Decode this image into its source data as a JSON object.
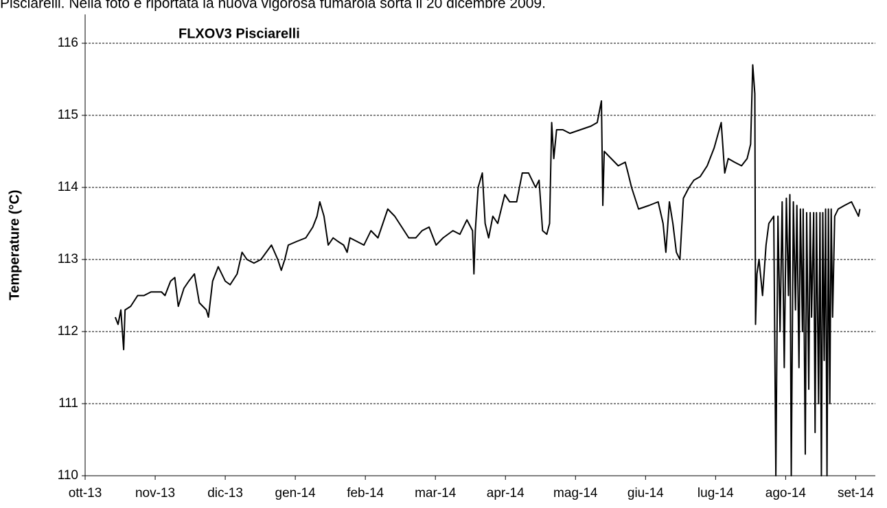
{
  "caption": "Pisciarelli. Nella foto è riportata la nuova vigorosa fumarola sorta il 20 dicembre 2009.",
  "chart_data": {
    "type": "line",
    "title": "FLXOV3 Pisciarelli",
    "y_label": "Temperature (°C)",
    "color": "#000000",
    "grid": true,
    "xlim": [
      0,
      11.28
    ],
    "ylim": [
      110,
      116.4
    ],
    "xticks": [
      {
        "value": 0,
        "label": "ott-13"
      },
      {
        "value": 1,
        "label": "nov-13"
      },
      {
        "value": 2,
        "label": "dic-13"
      },
      {
        "value": 3,
        "label": "gen-14"
      },
      {
        "value": 4,
        "label": "feb-14"
      },
      {
        "value": 5,
        "label": "mar-14"
      },
      {
        "value": 6,
        "label": "apr-14"
      },
      {
        "value": 7,
        "label": "mag-14"
      },
      {
        "value": 8,
        "label": "giu-14"
      },
      {
        "value": 9,
        "label": "lug-14"
      },
      {
        "value": 10,
        "label": "ago-14"
      },
      {
        "value": 11,
        "label": "set-14"
      }
    ],
    "yticks": [
      110,
      111,
      112,
      113,
      114,
      115,
      116
    ],
    "x": [
      0.43,
      0.47,
      0.51,
      0.55,
      0.57,
      0.65,
      0.75,
      0.84,
      0.94,
      1.09,
      1.14,
      1.22,
      1.28,
      1.33,
      1.41,
      1.48,
      1.56,
      1.63,
      1.73,
      1.76,
      1.82,
      1.9,
      2.0,
      2.07,
      2.17,
      2.24,
      2.31,
      2.41,
      2.51,
      2.66,
      2.75,
      2.8,
      2.85,
      2.9,
      3.02,
      3.15,
      3.25,
      3.31,
      3.35,
      3.41,
      3.47,
      3.54,
      3.61,
      3.69,
      3.74,
      3.78,
      3.88,
      3.98,
      4.08,
      4.18,
      4.32,
      4.42,
      4.52,
      4.62,
      4.72,
      4.81,
      4.91,
      5.01,
      5.11,
      5.25,
      5.35,
      5.45,
      5.53,
      5.55,
      5.57,
      5.61,
      5.67,
      5.71,
      5.76,
      5.82,
      5.89,
      5.99,
      6.06,
      6.16,
      6.24,
      6.33,
      6.43,
      6.48,
      6.53,
      6.59,
      6.63,
      6.66,
      6.69,
      6.73,
      6.82,
      6.92,
      7.07,
      7.22,
      7.31,
      7.37,
      7.39,
      7.41,
      7.51,
      7.61,
      7.71,
      7.75,
      7.8,
      7.9,
      8.05,
      8.18,
      8.25,
      8.29,
      8.34,
      8.39,
      8.44,
      8.49,
      8.54,
      8.62,
      8.69,
      8.78,
      8.88,
      8.98,
      9.08,
      9.13,
      9.18,
      9.27,
      9.37,
      9.45,
      9.5,
      9.53,
      9.56,
      9.57,
      9.59,
      9.62,
      9.67,
      9.72,
      9.76,
      9.83,
      9.86,
      9.89,
      9.92,
      9.95,
      9.98,
      10.01,
      10.04,
      10.06,
      10.08,
      10.11,
      10.14,
      10.16,
      10.19,
      10.21,
      10.24,
      10.25,
      10.28,
      10.3,
      10.33,
      10.35,
      10.37,
      10.4,
      10.42,
      10.44,
      10.47,
      10.49,
      10.51,
      10.53,
      10.55,
      10.57,
      10.59,
      10.61,
      10.63,
      10.65,
      10.67,
      10.7,
      10.75,
      10.84,
      10.94,
      11.04,
      11.06
    ],
    "values": [
      112.2,
      112.1,
      112.3,
      111.75,
      112.3,
      112.35,
      112.5,
      112.5,
      112.55,
      112.55,
      112.5,
      112.7,
      112.75,
      112.35,
      112.6,
      112.7,
      112.8,
      112.4,
      112.3,
      112.2,
      112.7,
      112.9,
      112.7,
      112.65,
      112.8,
      113.1,
      113.0,
      112.95,
      113.0,
      113.2,
      113.0,
      112.85,
      113.0,
      113.2,
      113.25,
      113.3,
      113.45,
      113.6,
      113.8,
      113.6,
      113.2,
      113.3,
      113.25,
      113.2,
      113.1,
      113.3,
      113.25,
      113.2,
      113.4,
      113.3,
      113.7,
      113.6,
      113.45,
      113.3,
      113.3,
      113.4,
      113.45,
      113.2,
      113.3,
      113.4,
      113.35,
      113.55,
      113.4,
      112.8,
      113.4,
      114.0,
      114.2,
      113.5,
      113.3,
      113.6,
      113.5,
      113.9,
      113.8,
      113.8,
      114.2,
      114.2,
      114.0,
      114.1,
      113.4,
      113.35,
      113.5,
      114.9,
      114.4,
      114.8,
      114.8,
      114.75,
      114.8,
      114.85,
      114.9,
      115.2,
      113.75,
      114.5,
      114.4,
      114.3,
      114.35,
      114.2,
      114.0,
      113.7,
      113.75,
      113.8,
      113.5,
      113.1,
      113.8,
      113.5,
      113.1,
      113.0,
      113.85,
      114.0,
      114.1,
      114.15,
      114.3,
      114.55,
      114.9,
      114.2,
      114.4,
      114.35,
      114.3,
      114.4,
      114.6,
      115.7,
      115.3,
      112.1,
      112.8,
      113.0,
      112.5,
      113.2,
      113.5,
      113.6,
      110,
      113.6,
      112.0,
      113.8,
      111.5,
      113.85,
      112.5,
      113.9,
      110.0,
      113.8,
      112.3,
      113.75,
      111.5,
      113.7,
      112.0,
      113.7,
      110.3,
      113.65,
      111.2,
      113.65,
      112.2,
      113.65,
      110.6,
      113.65,
      111.0,
      113.65,
      110.0,
      113.65,
      111.6,
      113.7,
      110.0,
      113.7,
      111.0,
      113.7,
      112.2,
      113.6,
      113.7,
      113.75,
      113.8,
      113.6,
      113.7
    ]
  }
}
